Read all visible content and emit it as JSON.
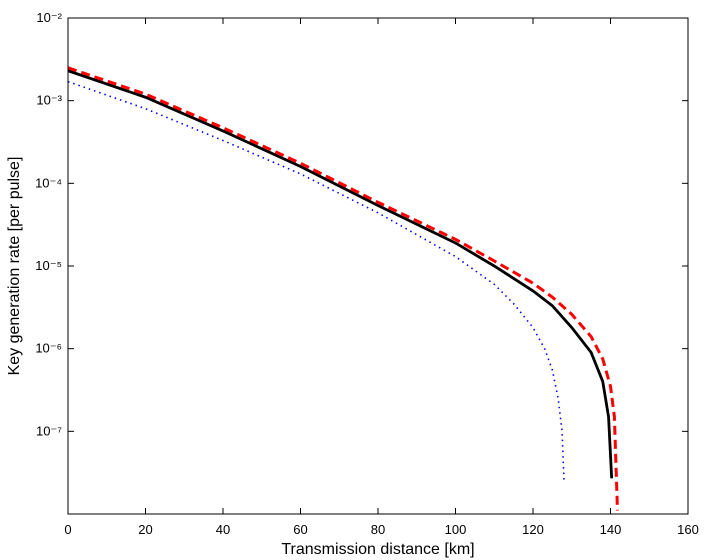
{
  "chart_data": {
    "type": "line",
    "x_label": "Transmission distance [km]",
    "y_label": "Key generation rate [per pulse]",
    "xlim": [
      0,
      160
    ],
    "xticks": [
      0,
      20,
      40,
      60,
      80,
      100,
      120,
      140,
      160
    ],
    "ylim": [
      1e-08,
      0.01
    ],
    "y_scale": "log",
    "yticks": [
      {
        "value": 1e-07,
        "label": "10⁻⁷"
      },
      {
        "value": 1e-06,
        "label": "10⁻⁶"
      },
      {
        "value": 1e-05,
        "label": "10⁻⁵"
      },
      {
        "value": 0.0001,
        "label": "10⁻⁴"
      },
      {
        "value": 0.001,
        "label": "10⁻³"
      },
      {
        "value": 0.01,
        "label": "10⁻²"
      }
    ],
    "grid": false,
    "series": [
      {
        "color": "#0000ff",
        "style": "dotted",
        "x": [
          0,
          20,
          40,
          60,
          80,
          100,
          110,
          115,
          120,
          123,
          125,
          126.5,
          127.5,
          128
        ],
        "values": [
          0.0017,
          0.0008,
          0.00033,
          0.00013,
          4.4e-05,
          1.3e-05,
          6e-06,
          3.5e-06,
          1.8e-06,
          1e-06,
          5.5e-07,
          2.5e-07,
          1e-07,
          2.5e-08
        ]
      },
      {
        "color": "#000000",
        "style": "solid",
        "x": [
          0,
          20,
          40,
          60,
          80,
          100,
          110,
          120,
          125,
          130,
          135,
          138,
          139.5,
          140.3
        ],
        "values": [
          0.0023,
          0.0011,
          0.00043,
          0.00016,
          5.4e-05,
          1.9e-05,
          1e-05,
          5e-06,
          3.3e-06,
          1.8e-06,
          9e-07,
          4e-07,
          1.5e-07,
          2.7e-08
        ]
      },
      {
        "color": "#ff0000",
        "style": "dashed",
        "x": [
          0,
          20,
          40,
          60,
          80,
          100,
          110,
          120,
          125,
          130,
          135,
          138,
          140,
          141,
          141.8
        ],
        "values": [
          0.0025,
          0.0012,
          0.00047,
          0.000175,
          5.9e-05,
          2.1e-05,
          1.15e-05,
          6.2e-06,
          4.2e-06,
          2.6e-06,
          1.4e-06,
          7.5e-07,
          3.5e-07,
          1.5e-07,
          1.1e-08
        ]
      }
    ]
  }
}
